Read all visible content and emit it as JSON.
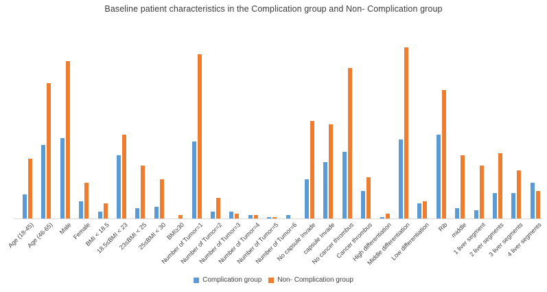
{
  "title": "Baseline patient characteristics in the Complication group and Non- Complication group",
  "colors": {
    "complication": "#5B9BD5",
    "non_complication": "#ED7D31",
    "axis_line": "#d9d9d9",
    "text": "#404040",
    "background": "#ffffff"
  },
  "legend": {
    "items": [
      {
        "label": "Complication group",
        "color": "#5B9BD5"
      },
      {
        "label": "Non- Complication group",
        "color": "#ED7D31"
      }
    ]
  },
  "chart_data": {
    "type": "bar",
    "title": "Baseline patient characteristics in the Complication group and Non- Complication group",
    "xlabel": "",
    "ylabel": "",
    "ylim": [
      0,
      105
    ],
    "grid": false,
    "y_axis_visible": false,
    "legend_position": "bottom",
    "x_label_rotation": 45,
    "categories": [
      "Age (18-45)",
      "Age (46-65)",
      "Male",
      "Female",
      "BMI < 18.5",
      "18.5≤BMI < 23",
      "23≤BMI < 25",
      "25≤BMI < 30",
      "BMI≥30",
      "Number of Tumor=1",
      "Number of Tumor=2",
      "Number of Tumor=3",
      "Number of Tumor=4",
      "Number of Tumor=5",
      "Number of Tumor=6",
      "No capsule Invade",
      "capsule Invade",
      "No cancer thrombus",
      "Cancer thrombus",
      "High differentiation",
      "Middle differentiation",
      "Low differentiation",
      "Rib",
      "middle",
      "1 liver segment",
      "2 liver segments",
      "3 liver segments",
      "4 liver segments"
    ],
    "series": [
      {
        "name": "Complication group",
        "color": "#5B9BD5",
        "values": [
          14,
          43,
          47,
          10,
          4,
          37,
          6,
          7,
          0,
          45,
          4,
          4,
          2,
          1,
          2,
          23,
          33,
          39,
          16,
          1,
          46,
          9,
          49,
          6,
          5,
          15,
          15,
          21
        ]
      },
      {
        "name": "Non- Complication group",
        "color": "#ED7D31",
        "values": [
          35,
          79,
          92,
          21,
          9,
          49,
          31,
          23,
          2,
          96,
          12,
          3,
          2,
          1,
          0,
          57,
          55,
          88,
          24,
          3,
          100,
          10,
          75,
          37,
          31,
          38,
          28,
          16
        ]
      }
    ]
  }
}
